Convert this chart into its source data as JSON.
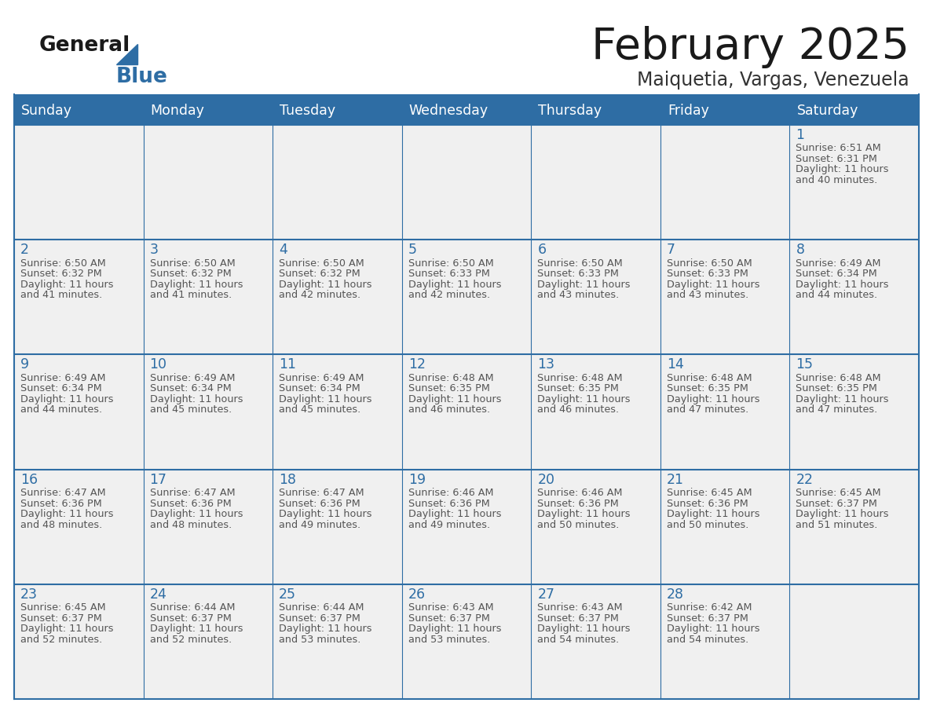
{
  "title": "February 2025",
  "subtitle": "Maiquetia, Vargas, Venezuela",
  "days_of_week": [
    "Sunday",
    "Monday",
    "Tuesday",
    "Wednesday",
    "Thursday",
    "Friday",
    "Saturday"
  ],
  "header_bg": "#2E6DA4",
  "header_text": "#FFFFFF",
  "cell_bg_light": "#F0F0F0",
  "border_color": "#2E6DA4",
  "day_number_color": "#2E6DA4",
  "text_color": "#555555",
  "title_color": "#1a1a1a",
  "subtitle_color": "#333333",
  "logo_general_color": "#1a1a1a",
  "logo_blue_color": "#2E6DA4",
  "calendar_data": [
    [
      null,
      null,
      null,
      null,
      null,
      null,
      {
        "day": 1,
        "sunrise": "6:51 AM",
        "sunset": "6:31 PM",
        "daylight_line1": "11 hours",
        "daylight_line2": "and 40 minutes."
      }
    ],
    [
      {
        "day": 2,
        "sunrise": "6:50 AM",
        "sunset": "6:32 PM",
        "daylight_line1": "11 hours",
        "daylight_line2": "and 41 minutes."
      },
      {
        "day": 3,
        "sunrise": "6:50 AM",
        "sunset": "6:32 PM",
        "daylight_line1": "11 hours",
        "daylight_line2": "and 41 minutes."
      },
      {
        "day": 4,
        "sunrise": "6:50 AM",
        "sunset": "6:32 PM",
        "daylight_line1": "11 hours",
        "daylight_line2": "and 42 minutes."
      },
      {
        "day": 5,
        "sunrise": "6:50 AM",
        "sunset": "6:33 PM",
        "daylight_line1": "11 hours",
        "daylight_line2": "and 42 minutes."
      },
      {
        "day": 6,
        "sunrise": "6:50 AM",
        "sunset": "6:33 PM",
        "daylight_line1": "11 hours",
        "daylight_line2": "and 43 minutes."
      },
      {
        "day": 7,
        "sunrise": "6:50 AM",
        "sunset": "6:33 PM",
        "daylight_line1": "11 hours",
        "daylight_line2": "and 43 minutes."
      },
      {
        "day": 8,
        "sunrise": "6:49 AM",
        "sunset": "6:34 PM",
        "daylight_line1": "11 hours",
        "daylight_line2": "and 44 minutes."
      }
    ],
    [
      {
        "day": 9,
        "sunrise": "6:49 AM",
        "sunset": "6:34 PM",
        "daylight_line1": "11 hours",
        "daylight_line2": "and 44 minutes."
      },
      {
        "day": 10,
        "sunrise": "6:49 AM",
        "sunset": "6:34 PM",
        "daylight_line1": "11 hours",
        "daylight_line2": "and 45 minutes."
      },
      {
        "day": 11,
        "sunrise": "6:49 AM",
        "sunset": "6:34 PM",
        "daylight_line1": "11 hours",
        "daylight_line2": "and 45 minutes."
      },
      {
        "day": 12,
        "sunrise": "6:48 AM",
        "sunset": "6:35 PM",
        "daylight_line1": "11 hours",
        "daylight_line2": "and 46 minutes."
      },
      {
        "day": 13,
        "sunrise": "6:48 AM",
        "sunset": "6:35 PM",
        "daylight_line1": "11 hours",
        "daylight_line2": "and 46 minutes."
      },
      {
        "day": 14,
        "sunrise": "6:48 AM",
        "sunset": "6:35 PM",
        "daylight_line1": "11 hours",
        "daylight_line2": "and 47 minutes."
      },
      {
        "day": 15,
        "sunrise": "6:48 AM",
        "sunset": "6:35 PM",
        "daylight_line1": "11 hours",
        "daylight_line2": "and 47 minutes."
      }
    ],
    [
      {
        "day": 16,
        "sunrise": "6:47 AM",
        "sunset": "6:36 PM",
        "daylight_line1": "11 hours",
        "daylight_line2": "and 48 minutes."
      },
      {
        "day": 17,
        "sunrise": "6:47 AM",
        "sunset": "6:36 PM",
        "daylight_line1": "11 hours",
        "daylight_line2": "and 48 minutes."
      },
      {
        "day": 18,
        "sunrise": "6:47 AM",
        "sunset": "6:36 PM",
        "daylight_line1": "11 hours",
        "daylight_line2": "and 49 minutes."
      },
      {
        "day": 19,
        "sunrise": "6:46 AM",
        "sunset": "6:36 PM",
        "daylight_line1": "11 hours",
        "daylight_line2": "and 49 minutes."
      },
      {
        "day": 20,
        "sunrise": "6:46 AM",
        "sunset": "6:36 PM",
        "daylight_line1": "11 hours",
        "daylight_line2": "and 50 minutes."
      },
      {
        "day": 21,
        "sunrise": "6:45 AM",
        "sunset": "6:36 PM",
        "daylight_line1": "11 hours",
        "daylight_line2": "and 50 minutes."
      },
      {
        "day": 22,
        "sunrise": "6:45 AM",
        "sunset": "6:37 PM",
        "daylight_line1": "11 hours",
        "daylight_line2": "and 51 minutes."
      }
    ],
    [
      {
        "day": 23,
        "sunrise": "6:45 AM",
        "sunset": "6:37 PM",
        "daylight_line1": "11 hours",
        "daylight_line2": "and 52 minutes."
      },
      {
        "day": 24,
        "sunrise": "6:44 AM",
        "sunset": "6:37 PM",
        "daylight_line1": "11 hours",
        "daylight_line2": "and 52 minutes."
      },
      {
        "day": 25,
        "sunrise": "6:44 AM",
        "sunset": "6:37 PM",
        "daylight_line1": "11 hours",
        "daylight_line2": "and 53 minutes."
      },
      {
        "day": 26,
        "sunrise": "6:43 AM",
        "sunset": "6:37 PM",
        "daylight_line1": "11 hours",
        "daylight_line2": "and 53 minutes."
      },
      {
        "day": 27,
        "sunrise": "6:43 AM",
        "sunset": "6:37 PM",
        "daylight_line1": "11 hours",
        "daylight_line2": "and 54 minutes."
      },
      {
        "day": 28,
        "sunrise": "6:42 AM",
        "sunset": "6:37 PM",
        "daylight_line1": "11 hours",
        "daylight_line2": "and 54 minutes."
      },
      null
    ]
  ]
}
